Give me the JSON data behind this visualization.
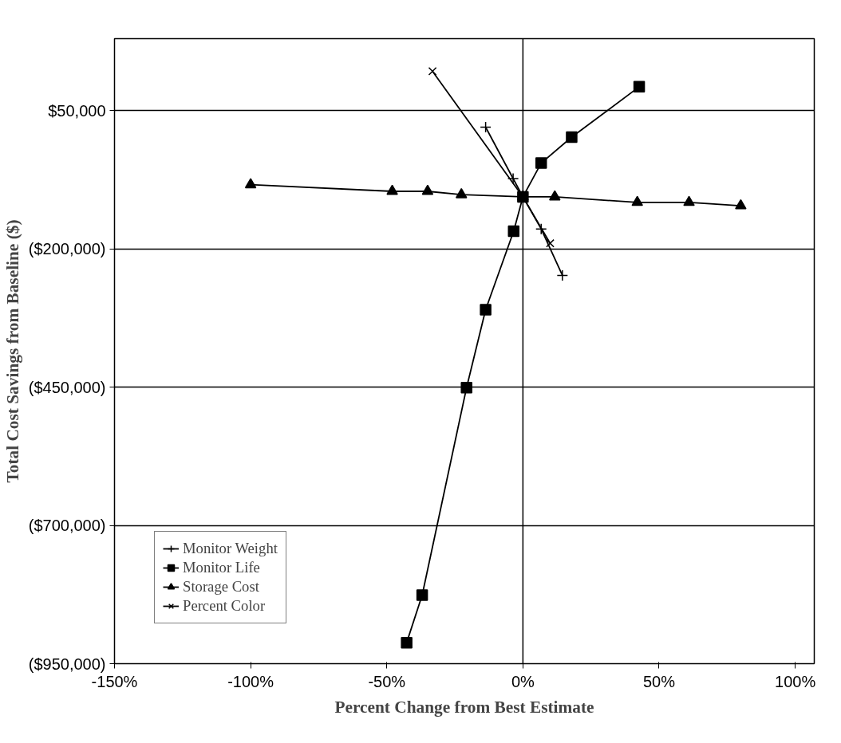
{
  "chart_data": {
    "type": "line",
    "xlabel": "Percent Change from Best Estimate",
    "ylabel": "Total Cost Savings from Baseline ($)",
    "xlim": [
      -150,
      107
    ],
    "ylim": [
      -950000,
      180000
    ],
    "xticks": [
      {
        "value": -150,
        "label": "-150%"
      },
      {
        "value": -100,
        "label": "-100%"
      },
      {
        "value": -50,
        "label": "-50%"
      },
      {
        "value": 0,
        "label": "0%"
      },
      {
        "value": 50,
        "label": "50%"
      },
      {
        "value": 100,
        "label": "100%"
      }
    ],
    "yticks": [
      {
        "value": 50000,
        "label": "$50,000"
      },
      {
        "value": -200000,
        "label": "($200,000)"
      },
      {
        "value": -450000,
        "label": "($450,000)"
      },
      {
        "value": -700000,
        "label": "($700,000)"
      },
      {
        "value": -950000,
        "label": "($950,000)"
      }
    ],
    "grid": "y",
    "legend": "bottom left",
    "ref_lines": [
      {
        "axis": "x",
        "value": 0
      }
    ],
    "series": [
      {
        "name": "Monitor Weight",
        "color": "#000000",
        "marker": "cross",
        "x": [
          -13.7,
          -3.6,
          0,
          6.7,
          14.5
        ],
        "values": [
          20000,
          -73000,
          -106000,
          -164000,
          -248000
        ]
      },
      {
        "name": "Monitor Life",
        "color": "#000000",
        "marker": "square",
        "x": [
          -42.7,
          -37,
          -20.7,
          -13.7,
          -3.4,
          0,
          6.7,
          17.9,
          42.7
        ],
        "values": [
          -912000,
          -826000,
          -451000,
          -310000,
          -168000,
          -106000,
          -45000,
          2000,
          93000
        ]
      },
      {
        "name": "Storage Cost",
        "color": "#000000",
        "marker": "triangle",
        "x": [
          -100,
          -48,
          -35,
          -22.6,
          0,
          11.7,
          42,
          61,
          80
        ],
        "values": [
          -84000,
          -96000,
          -96000,
          -102000,
          -106000,
          -106000,
          -116000,
          -116000,
          -122000
        ]
      },
      {
        "name": "Percent Color",
        "color": "#000000",
        "marker": "x",
        "x": [
          -33.2,
          0,
          10
        ],
        "values": [
          121000,
          -106000,
          -190000
        ]
      }
    ]
  }
}
